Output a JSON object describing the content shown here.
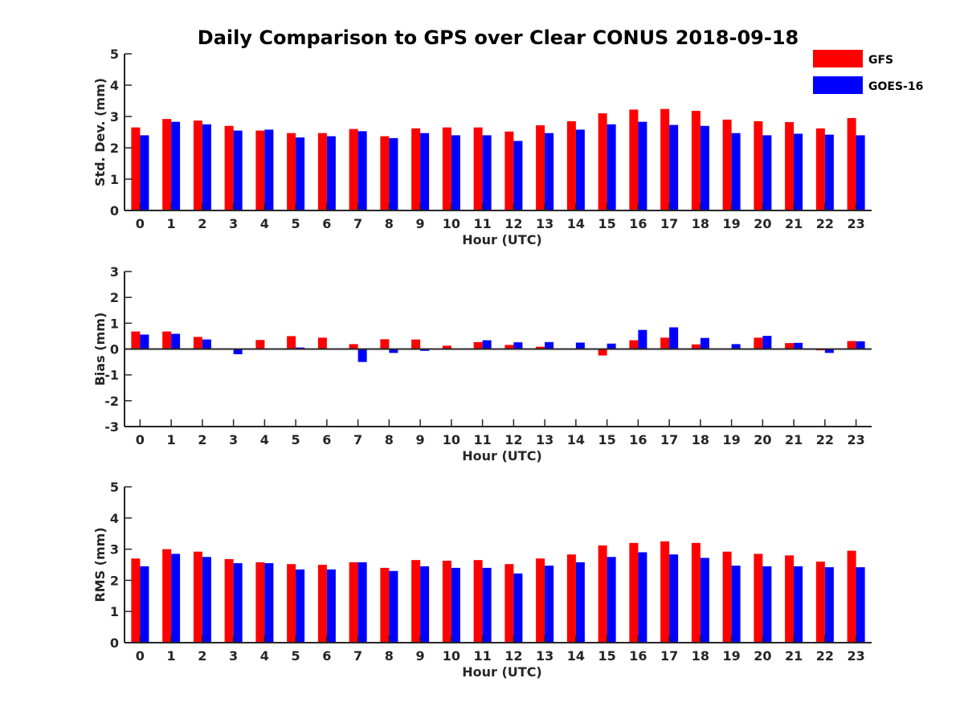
{
  "figure": {
    "title": "Daily Comparison to GPS over Clear CONUS 2018-09-18"
  },
  "legend": {
    "placement": "top-right",
    "entries": [
      {
        "name": "GFS",
        "color": "#ff0000"
      },
      {
        "name": "GOES-16",
        "color": "#0000ff"
      }
    ]
  },
  "chart_data": [
    {
      "type": "bar",
      "title": "Daily Comparison to GPS over Clear CONUS 2018-09-18",
      "xlabel": "Hour (UTC)",
      "ylabel": "Std. Dev. (mm)",
      "ylim": [
        0,
        5
      ],
      "yticks": [
        0,
        1,
        2,
        3,
        4,
        5
      ],
      "categories": [
        "0",
        "1",
        "2",
        "3",
        "4",
        "5",
        "6",
        "7",
        "8",
        "9",
        "10",
        "11",
        "12",
        "13",
        "14",
        "15",
        "16",
        "17",
        "18",
        "19",
        "20",
        "21",
        "22",
        "23"
      ],
      "series": [
        {
          "name": "GFS",
          "color": "#ff0000",
          "values": [
            2.65,
            2.92,
            2.87,
            2.7,
            2.55,
            2.47,
            2.47,
            2.6,
            2.37,
            2.62,
            2.65,
            2.65,
            2.52,
            2.72,
            2.85,
            3.1,
            3.22,
            3.24,
            3.18,
            2.9,
            2.85,
            2.82,
            2.62,
            2.95
          ]
        },
        {
          "name": "GOES-16",
          "color": "#0000ff",
          "values": [
            2.4,
            2.83,
            2.75,
            2.55,
            2.58,
            2.33,
            2.37,
            2.53,
            2.31,
            2.47,
            2.4,
            2.4,
            2.22,
            2.47,
            2.58,
            2.75,
            2.83,
            2.73,
            2.7,
            2.47,
            2.4,
            2.45,
            2.42,
            2.4
          ]
        }
      ]
    },
    {
      "type": "bar",
      "xlabel": "Hour (UTC)",
      "ylabel": "Bias (mm)",
      "ylim": [
        -3,
        3
      ],
      "yticks": [
        -3,
        -2,
        -1,
        0,
        1,
        2,
        3
      ],
      "categories": [
        "0",
        "1",
        "2",
        "3",
        "4",
        "5",
        "6",
        "7",
        "8",
        "9",
        "10",
        "11",
        "12",
        "13",
        "14",
        "15",
        "16",
        "17",
        "18",
        "19",
        "20",
        "21",
        "22",
        "23"
      ],
      "series": [
        {
          "name": "GFS",
          "color": "#ff0000",
          "values": [
            0.68,
            0.68,
            0.47,
            0.02,
            0.35,
            0.5,
            0.44,
            0.19,
            0.38,
            0.37,
            0.13,
            0.27,
            0.16,
            0.09,
            -0.03,
            -0.25,
            0.34,
            0.44,
            0.18,
            -0.03,
            0.44,
            0.23,
            -0.05,
            0.31
          ]
        },
        {
          "name": "GOES-16",
          "color": "#0000ff",
          "values": [
            0.56,
            0.59,
            0.37,
            -0.2,
            -0.03,
            0.06,
            0.01,
            -0.5,
            -0.15,
            -0.07,
            -0.03,
            0.34,
            0.26,
            0.27,
            0.25,
            0.21,
            0.74,
            0.84,
            0.43,
            0.19,
            0.51,
            0.24,
            -0.15,
            0.3
          ]
        }
      ]
    },
    {
      "type": "bar",
      "xlabel": "Hour (UTC)",
      "ylabel": "RMS (mm)",
      "ylim": [
        0,
        5
      ],
      "yticks": [
        0,
        1,
        2,
        3,
        4,
        5
      ],
      "categories": [
        "0",
        "1",
        "2",
        "3",
        "4",
        "5",
        "6",
        "7",
        "8",
        "9",
        "10",
        "11",
        "12",
        "13",
        "14",
        "15",
        "16",
        "17",
        "18",
        "19",
        "20",
        "21",
        "22",
        "23"
      ],
      "series": [
        {
          "name": "GFS",
          "color": "#ff0000",
          "values": [
            2.7,
            3.0,
            2.92,
            2.68,
            2.58,
            2.52,
            2.5,
            2.58,
            2.4,
            2.65,
            2.63,
            2.65,
            2.52,
            2.7,
            2.83,
            3.12,
            3.2,
            3.25,
            3.2,
            2.92,
            2.85,
            2.8,
            2.6,
            2.95
          ]
        },
        {
          "name": "GOES-16",
          "color": "#0000ff",
          "values": [
            2.45,
            2.85,
            2.75,
            2.55,
            2.55,
            2.35,
            2.35,
            2.58,
            2.3,
            2.45,
            2.4,
            2.4,
            2.22,
            2.47,
            2.58,
            2.75,
            2.9,
            2.83,
            2.72,
            2.47,
            2.45,
            2.45,
            2.42,
            2.42
          ]
        }
      ]
    }
  ]
}
